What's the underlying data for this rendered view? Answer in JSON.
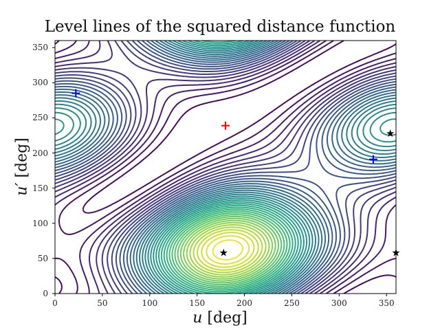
{
  "chart_data": {
    "type": "contour",
    "title": "Level lines of the squared distance function",
    "xlabel": "u [deg]",
    "ylabel": "u′ [deg]",
    "xlim": [
      0,
      360
    ],
    "ylim": [
      0,
      360
    ],
    "xticks": [
      0,
      50,
      100,
      150,
      200,
      250,
      300,
      350
    ],
    "yticks": [
      0,
      50,
      100,
      150,
      200,
      250,
      300,
      350
    ],
    "colormap": "viridis",
    "num_levels": 40,
    "markers": [
      {
        "type": "max",
        "symbol": "+",
        "color": "#ff0000",
        "u": 180,
        "v": 239
      },
      {
        "type": "min",
        "symbol": "+",
        "color": "#0000ff",
        "u": 22,
        "v": 285
      },
      {
        "type": "min",
        "symbol": "+",
        "color": "#0000ff",
        "u": 336,
        "v": 191
      },
      {
        "type": "saddle",
        "symbol": "★",
        "color": "#000000",
        "u": 178,
        "v": 58
      },
      {
        "type": "saddle",
        "symbol": "★",
        "color": "#000000",
        "u": 354,
        "v": 228
      },
      {
        "type": "saddle",
        "symbol": "★",
        "color": "#000000",
        "u": 360,
        "v": 58
      }
    ]
  },
  "labels": {
    "title": "Level lines of the squared distance function",
    "xlabel_var": "u",
    "xlabel_unit": " [deg]",
    "ylabel_var": "u′",
    "ylabel_unit": " [deg]"
  }
}
